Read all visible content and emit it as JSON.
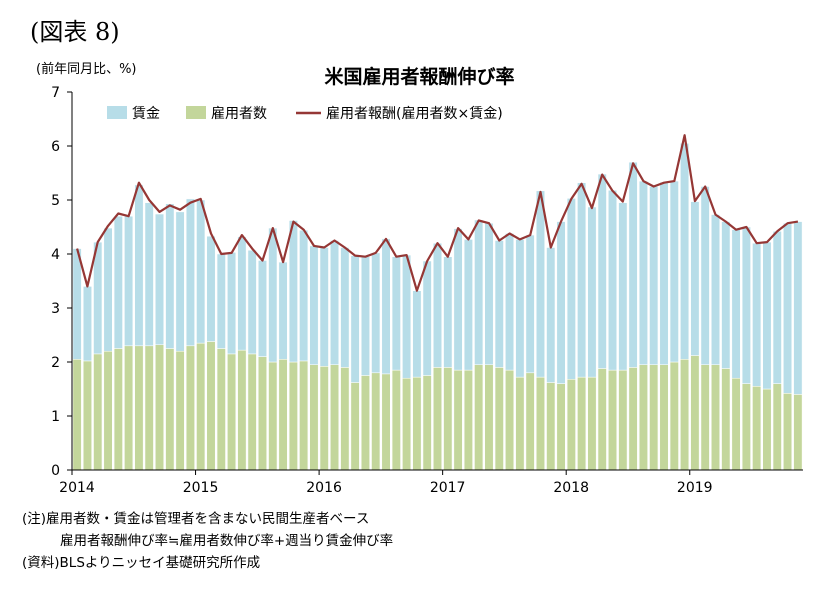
{
  "figure_label": "(図表 8)",
  "unit_label": "(前年同月比、%)",
  "notes": {
    "line1": "(注)雇用者数・賃金は管理者を含まない民間生産者ベース",
    "line2": "雇用者報酬伸び率≒雇用者数伸び率+週当り賃金伸び率",
    "source": "(資料)BLSよりニッセイ基礎研究所作成"
  },
  "colors": {
    "wage": "#b7dde8",
    "employment": "#c3d69b",
    "compensation_line": "#953735",
    "bar_edge": "#ffffff",
    "axis": "#000000"
  },
  "chart_data": {
    "type": "bar",
    "title": "米国雇用者報酬伸び率",
    "ylabel": "(前年同月比、%)",
    "ylim": [
      0,
      7
    ],
    "yticks": [
      0,
      1,
      2,
      3,
      4,
      5,
      6,
      7
    ],
    "x_tick_labels": [
      "2014",
      "2015",
      "2016",
      "2017",
      "2018",
      "2019"
    ],
    "x_start": "2014-01",
    "legend_position": "top-left",
    "grid": false,
    "stacked": true,
    "series": [
      {
        "name": "賃金",
        "kind": "bar",
        "values": [
          2.05,
          1.38,
          2.07,
          2.28,
          2.45,
          2.4,
          2.98,
          2.65,
          2.42,
          2.68,
          2.58,
          2.72,
          2.65,
          1.95,
          1.75,
          1.88,
          2.1,
          1.92,
          1.78,
          2.48,
          1.8,
          2.62,
          2.42,
          2.2,
          2.2,
          2.3,
          2.22,
          2.35,
          2.2,
          2.22,
          2.5,
          2.1,
          2.28,
          1.6,
          2.12,
          2.3,
          2.05,
          2.62,
          2.42,
          2.68,
          2.62,
          2.35,
          2.53,
          2.55,
          2.55,
          3.45,
          2.5,
          3.0,
          3.35,
          3.6,
          3.15,
          3.6,
          3.33,
          3.1,
          3.8,
          3.4,
          3.3,
          3.38,
          3.35,
          4.0,
          2.85,
          3.3,
          2.78,
          2.72,
          2.75,
          2.9,
          2.65,
          2.72,
          2.82,
          3.15,
          3.2
        ]
      },
      {
        "name": "雇用者数",
        "kind": "bar",
        "values": [
          2.05,
          2.02,
          2.15,
          2.2,
          2.25,
          2.3,
          2.3,
          2.3,
          2.32,
          2.25,
          2.2,
          2.3,
          2.35,
          2.38,
          2.25,
          2.15,
          2.22,
          2.15,
          2.1,
          2.0,
          2.05,
          2.0,
          2.02,
          1.95,
          1.92,
          1.95,
          1.9,
          1.62,
          1.75,
          1.8,
          1.78,
          1.85,
          1.7,
          1.72,
          1.75,
          1.9,
          1.9,
          1.85,
          1.85,
          1.95,
          1.95,
          1.9,
          1.85,
          1.72,
          1.8,
          1.72,
          1.62,
          1.6,
          1.68,
          1.72,
          1.72,
          1.88,
          1.85,
          1.85,
          1.9,
          1.95,
          1.95,
          1.95,
          2.0,
          2.05,
          2.12,
          1.95,
          1.95,
          1.88,
          1.7,
          1.6,
          1.55,
          1.5,
          1.6,
          1.42,
          1.4
        ]
      },
      {
        "name": "雇用者報酬(雇用者数×賃金)",
        "kind": "line",
        "values": [
          4.1,
          3.4,
          4.22,
          4.52,
          4.75,
          4.7,
          5.32,
          5.0,
          4.78,
          4.9,
          4.82,
          4.95,
          5.02,
          4.38,
          4.0,
          4.02,
          4.35,
          4.1,
          3.88,
          4.48,
          3.85,
          4.6,
          4.45,
          4.15,
          4.12,
          4.25,
          4.12,
          3.97,
          3.95,
          4.02,
          4.28,
          3.95,
          3.98,
          3.32,
          3.87,
          4.2,
          3.95,
          4.48,
          4.27,
          4.62,
          4.57,
          4.25,
          4.38,
          4.27,
          4.35,
          5.15,
          4.12,
          4.6,
          5.02,
          5.3,
          4.85,
          5.47,
          5.17,
          4.97,
          5.68,
          5.35,
          5.25,
          5.32,
          5.35,
          6.2,
          4.98,
          5.25,
          4.73,
          4.6,
          4.45,
          4.5,
          4.2,
          4.22,
          4.42,
          4.57,
          4.6
        ]
      }
    ]
  }
}
